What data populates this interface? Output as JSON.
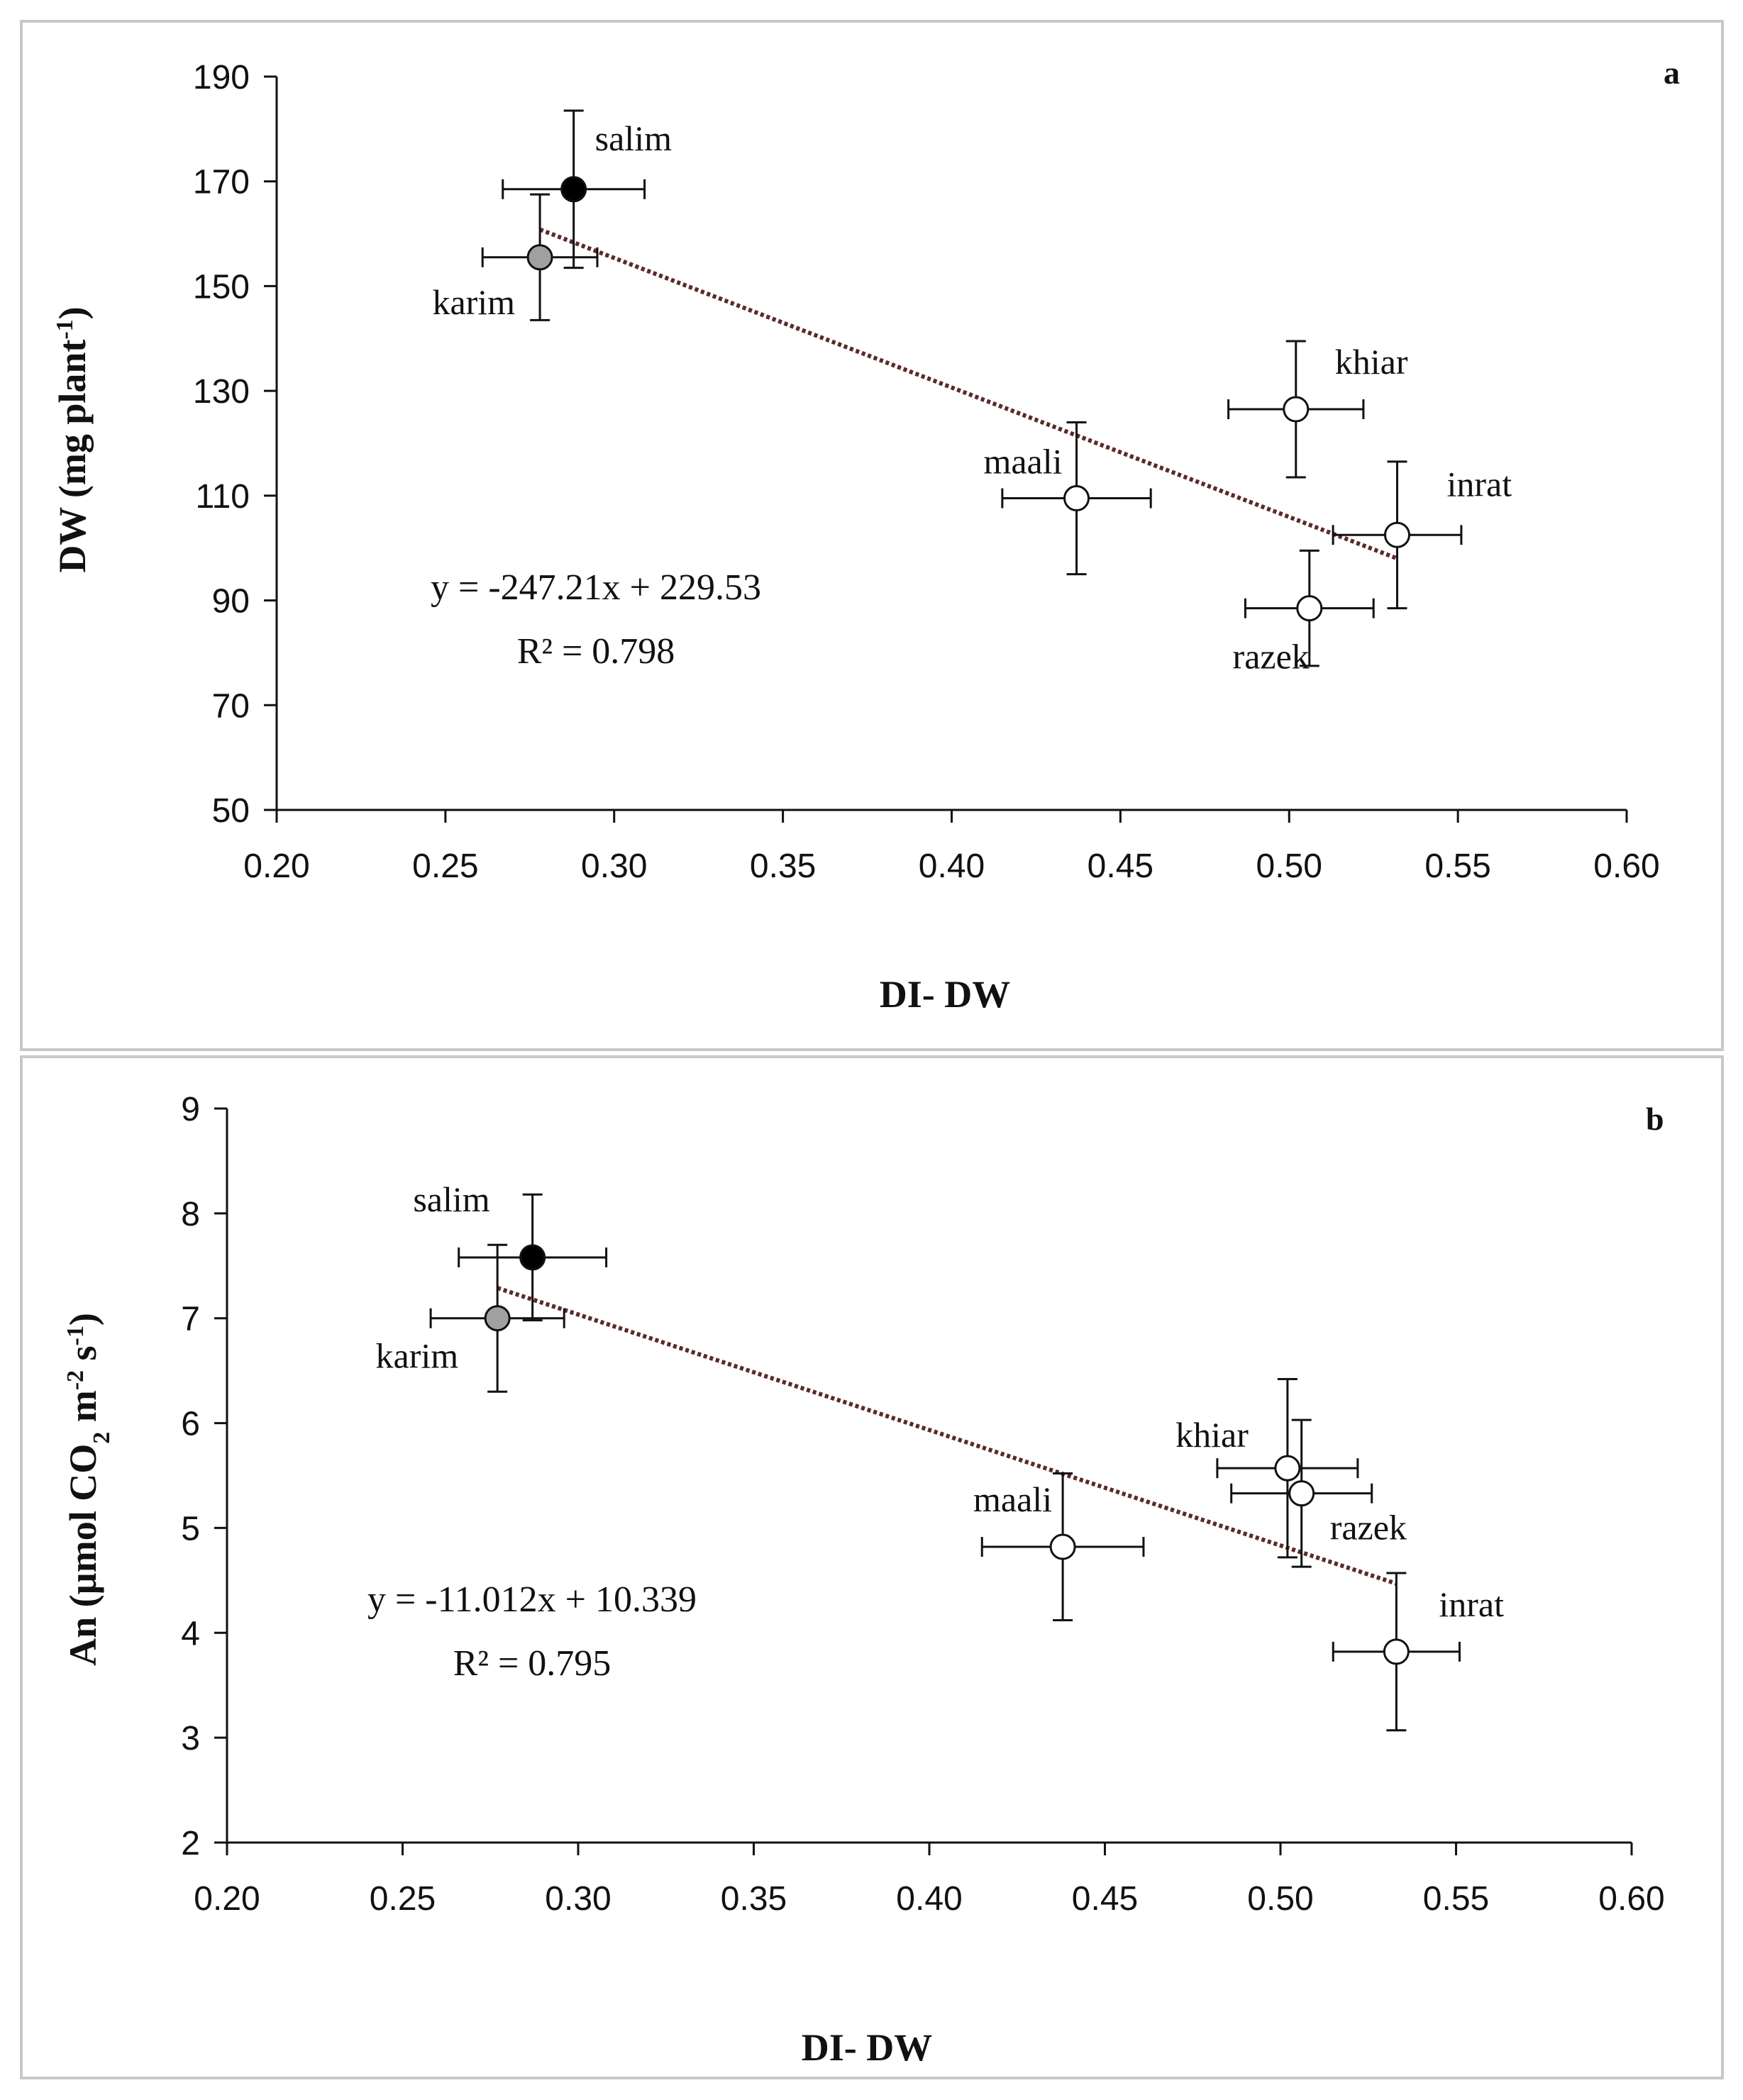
{
  "chart_data": [
    {
      "type": "scatter",
      "panel": "a",
      "xlabel": "DI- DW",
      "ylabel": "DW (mg plant",
      "ylabel_sup": "-1",
      "ylabel_end": ")",
      "xlim": [
        0.2,
        0.6
      ],
      "ylim": [
        50,
        190
      ],
      "xticks": [
        "0.20",
        "0.25",
        "0.30",
        "0.35",
        "0.40",
        "0.45",
        "0.50",
        "0.55",
        "0.60"
      ],
      "xtick_values": [
        0.2,
        0.25,
        0.3,
        0.35,
        0.4,
        0.45,
        0.5,
        0.55,
        0.6
      ],
      "yticks": [
        "50",
        "70",
        "90",
        "110",
        "130",
        "150",
        "170",
        "190"
      ],
      "ytick_values": [
        50,
        70,
        90,
        110,
        130,
        150,
        170,
        190
      ],
      "points": [
        {
          "name": "salim",
          "x": 0.288,
          "y": 168.5,
          "xerr": 0.021,
          "yerr": 15,
          "fill": "#000000"
        },
        {
          "name": "karim",
          "x": 0.278,
          "y": 155.5,
          "xerr": 0.017,
          "yerr": 12,
          "fill": "#a0a0a0"
        },
        {
          "name": "khiar",
          "x": 0.502,
          "y": 126.5,
          "xerr": 0.02,
          "yerr": 13,
          "fill": "#ffffff"
        },
        {
          "name": "maali",
          "x": 0.437,
          "y": 109.5,
          "xerr": 0.022,
          "yerr": 14.5,
          "fill": "#ffffff"
        },
        {
          "name": "inrat",
          "x": 0.532,
          "y": 102.5,
          "xerr": 0.019,
          "yerr": 14,
          "fill": "#ffffff"
        },
        {
          "name": "razek",
          "x": 0.506,
          "y": 88.5,
          "xerr": 0.019,
          "yerr": 11,
          "fill": "#ffffff"
        }
      ],
      "trendline": {
        "slope": -247.21,
        "intercept": 229.53,
        "x_range": [
          0.278,
          0.532
        ]
      },
      "equation": "y = -247.21x + 229.53",
      "r2_text": "R² = 0.798"
    },
    {
      "type": "scatter",
      "panel": "b",
      "xlabel": "DI- DW",
      "ylabel": "An (µmol CO",
      "ylabel_sub": "2",
      "ylabel_mid": " m",
      "ylabel_sup1": "-2",
      "ylabel_mid2": " s",
      "ylabel_sup2": "-1",
      "ylabel_end": ")",
      "xlim": [
        0.2,
        0.6
      ],
      "ylim": [
        2,
        9
      ],
      "xticks": [
        "0.20",
        "0.25",
        "0.30",
        "0.35",
        "0.40",
        "0.45",
        "0.50",
        "0.55",
        "0.60"
      ],
      "xtick_values": [
        0.2,
        0.25,
        0.3,
        0.35,
        0.4,
        0.45,
        0.5,
        0.55,
        0.6
      ],
      "yticks": [
        "2",
        "3",
        "4",
        "5",
        "6",
        "7",
        "8",
        "9"
      ],
      "ytick_values": [
        2,
        3,
        4,
        5,
        6,
        7,
        8,
        9
      ],
      "points": [
        {
          "name": "salim",
          "x": 0.287,
          "y": 7.58,
          "xerr": 0.021,
          "yerr": 0.6,
          "fill": "#000000"
        },
        {
          "name": "karim",
          "x": 0.277,
          "y": 7.0,
          "xerr": 0.019,
          "yerr": 0.7,
          "fill": "#a0a0a0"
        },
        {
          "name": "khiar",
          "x": 0.502,
          "y": 5.57,
          "xerr": 0.02,
          "yerr": 0.85,
          "fill": "#ffffff"
        },
        {
          "name": "razek",
          "x": 0.506,
          "y": 5.33,
          "xerr": 0.02,
          "yerr": 0.7,
          "fill": "#ffffff"
        },
        {
          "name": "maali",
          "x": 0.438,
          "y": 4.82,
          "xerr": 0.023,
          "yerr": 0.7,
          "fill": "#ffffff"
        },
        {
          "name": "inrat",
          "x": 0.533,
          "y": 3.82,
          "xerr": 0.018,
          "yerr": 0.75,
          "fill": "#ffffff"
        }
      ],
      "trendline": {
        "slope": -11.012,
        "intercept": 10.339,
        "x_range": [
          0.277,
          0.533
        ]
      },
      "equation": "y = -11.012x + 10.339",
      "r2_text": "R² = 0.795"
    }
  ],
  "colors": {
    "axis": "#111111",
    "trendline": "#5a2a2a",
    "frame": "#c8c8c8"
  }
}
